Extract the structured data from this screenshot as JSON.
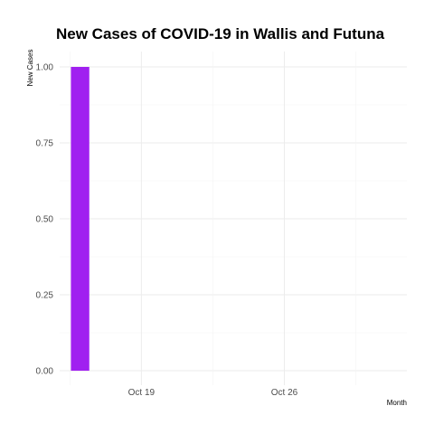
{
  "chart_data": {
    "type": "bar",
    "title": "New Cases of COVID-19 in Wallis and Futuna",
    "xlabel": "Month",
    "ylabel": "New Cases",
    "x_ticks": [
      {
        "date": "2020-10-19",
        "label": "Oct 19"
      },
      {
        "date": "2020-10-26",
        "label": "Oct 26"
      }
    ],
    "xlim": [
      "2020-10-15",
      "2020-11-01"
    ],
    "y_ticks": [
      "0.00",
      "0.25",
      "0.50",
      "0.75",
      "1.00"
    ],
    "ylim": [
      0,
      1
    ],
    "bars": [
      {
        "date": "2020-10-16",
        "value": 1
      }
    ],
    "bar_color": "#a020f0",
    "grid": true,
    "legend": "none"
  }
}
